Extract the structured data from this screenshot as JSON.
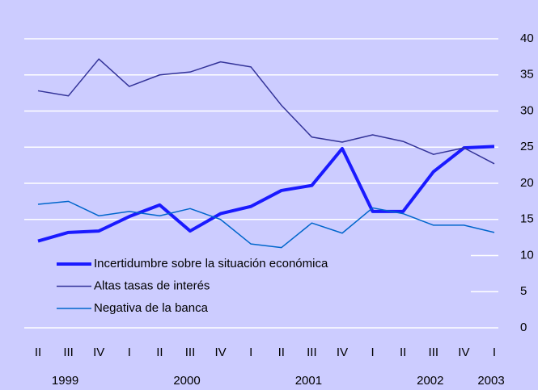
{
  "chart_data": {
    "type": "line",
    "categories": [
      "II",
      "III",
      "IV",
      "I",
      "II",
      "III",
      "IV",
      "I",
      "II",
      "III",
      "IV",
      "I",
      "II",
      "III",
      "IV",
      "I"
    ],
    "years": [
      null,
      "1999",
      null,
      null,
      null,
      "2000",
      null,
      null,
      null,
      "2001",
      null,
      null,
      null,
      "2002",
      null,
      "2003"
    ],
    "series": [
      {
        "name": "Incertidumbre sobre la situación económica",
        "color": "#1a1aff",
        "width": 4,
        "values": [
          12.0,
          13.2,
          13.4,
          15.4,
          17.0,
          13.4,
          15.8,
          16.8,
          19.0,
          19.7,
          24.8,
          16.1,
          16.1,
          21.6,
          24.9,
          25.1
        ]
      },
      {
        "name": "Altas tasas de interés",
        "color": "#333399",
        "width": 1.5,
        "values": [
          32.8,
          32.1,
          37.2,
          33.4,
          35.0,
          35.4,
          36.8,
          36.1,
          30.8,
          26.4,
          25.7,
          26.7,
          25.8,
          24.0,
          24.9,
          22.7
        ]
      },
      {
        "name": "Negativa de la banca",
        "color": "#0066cc",
        "width": 1.5,
        "values": [
          17.1,
          17.5,
          15.5,
          16.1,
          15.5,
          16.5,
          15.0,
          11.6,
          11.1,
          14.5,
          13.1,
          16.6,
          15.8,
          14.2,
          14.2,
          13.2
        ]
      }
    ],
    "ylim": [
      0,
      40
    ],
    "yticks": [
      0,
      5,
      10,
      15,
      20,
      25,
      30,
      35,
      40
    ],
    "grid": true,
    "legend": "bottom-left"
  }
}
